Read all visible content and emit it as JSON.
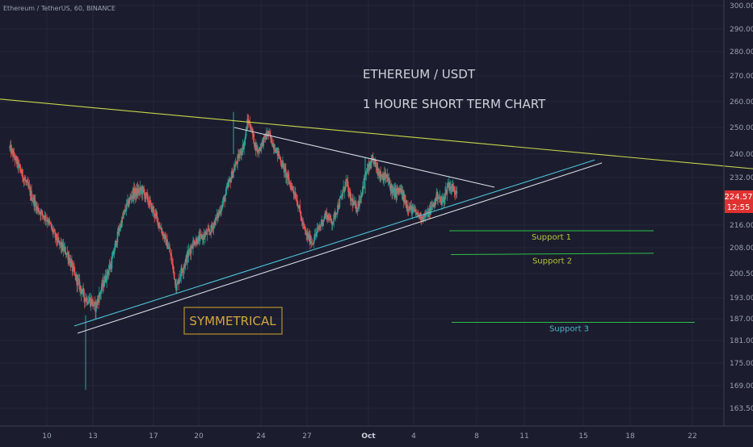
{
  "header": {
    "symbol_info": "Ethereum / TetherUS, 60, BINANCE"
  },
  "colors": {
    "background": "#1b1d2e",
    "candle_up": "#26a69a",
    "candle_down": "#ef5350",
    "resistance_line": "#c8d64a",
    "triangle_upper_line": "#d9dce6",
    "triangle_lower_line": "#4fc3d9",
    "support_line": "#2fbf4a",
    "price_label_bg": "#e03131",
    "annotation_box": "#b8902c",
    "axis_text": "#9aa0b4"
  },
  "chart_data": {
    "type": "candlestick",
    "pair": "ETH/USDT",
    "timeframe": "60",
    "exchange": "BINANCE",
    "title_lines": [
      "ETHEREUM / USDT",
      "1 HOURE SHORT TERM CHART"
    ],
    "y_axis": {
      "tick_labels": [
        "300.00",
        "290.00",
        "280.00",
        "270.00",
        "260.00",
        "250.00",
        "240.00",
        "232.00",
        "224.00",
        "216.00",
        "208.00",
        "200.50",
        "193.00",
        "187.00",
        "181.00",
        "175.00",
        "169.00",
        "163.50"
      ]
    },
    "x_axis": {
      "tick_labels": [
        "10",
        "13",
        "17",
        "20",
        "24",
        "27",
        "Oct",
        "4",
        "8",
        "11",
        "15",
        "18",
        "22"
      ]
    },
    "last_price": "224.57",
    "countdown": "12:55",
    "pattern_label": "SYMMETRICAL",
    "support_levels": [
      {
        "name": "Support 1",
        "price": 214
      },
      {
        "name": "Support 2",
        "price": 206
      },
      {
        "name": "Support 3",
        "price": 186
      }
    ],
    "price_path": [
      [
        7,
        232
      ],
      [
        11,
        222
      ],
      [
        14,
        218
      ],
      [
        17,
        210
      ],
      [
        20,
        206
      ],
      [
        22,
        200
      ],
      [
        25,
        193
      ],
      [
        27,
        192
      ],
      [
        28,
        190
      ],
      [
        30,
        196
      ],
      [
        31,
        199
      ],
      [
        33,
        204
      ],
      [
        35,
        214
      ],
      [
        37,
        222
      ],
      [
        39,
        227
      ],
      [
        42,
        228
      ],
      [
        44,
        224
      ],
      [
        46,
        219
      ],
      [
        48,
        213
      ],
      [
        50,
        207
      ],
      [
        51,
        202
      ],
      [
        52,
        196
      ],
      [
        53,
        200
      ],
      [
        55,
        205
      ],
      [
        57,
        210
      ],
      [
        60,
        212
      ],
      [
        62,
        214
      ],
      [
        64,
        219
      ],
      [
        66,
        225
      ],
      [
        68,
        232
      ],
      [
        70,
        238
      ],
      [
        72,
        244
      ],
      [
        73,
        253
      ],
      [
        74,
        250
      ],
      [
        75,
        244
      ],
      [
        76,
        241
      ],
      [
        78,
        246
      ],
      [
        79,
        248
      ],
      [
        80,
        245
      ],
      [
        82,
        240
      ],
      [
        83,
        237
      ],
      [
        85,
        231
      ],
      [
        87,
        227
      ],
      [
        88,
        223
      ],
      [
        89,
        217
      ],
      [
        90,
        213
      ],
      [
        92,
        210
      ],
      [
        94,
        215
      ],
      [
        96,
        220
      ],
      [
        98,
        217
      ],
      [
        99,
        221
      ],
      [
        101,
        227
      ],
      [
        102,
        231
      ],
      [
        103,
        226
      ],
      [
        105,
        222
      ],
      [
        106,
        225
      ],
      [
        108,
        234
      ],
      [
        110,
        238
      ],
      [
        112,
        233
      ],
      [
        114,
        232
      ],
      [
        116,
        227
      ],
      [
        118,
        228
      ],
      [
        120,
        223
      ],
      [
        122,
        221
      ],
      [
        124,
        219
      ],
      [
        126,
        220
      ],
      [
        128,
        224
      ],
      [
        129,
        227
      ],
      [
        130,
        224
      ],
      [
        131,
        226
      ],
      [
        132,
        230
      ],
      [
        133,
        229
      ],
      [
        134,
        228
      ],
      [
        135,
        229
      ]
    ],
    "extreme_wicks": [
      {
        "x": 73.2,
        "high": 256,
        "low": 240
      },
      {
        "x": 27.6,
        "high": 188,
        "low": 168
      },
      {
        "x": 112.2,
        "high": 239,
        "low": 227
      }
    ],
    "trendlines": [
      {
        "name": "resistance-line",
        "from": [
          0,
          261
        ],
        "to": [
          230,
          235
        ]
      },
      {
        "name": "triangle-upper-line",
        "from": [
          74,
          250
        ],
        "to": [
          150,
          229
        ]
      },
      {
        "name": "triangle-lower-line",
        "from": [
          22,
          185
        ],
        "to": [
          182,
          238
        ]
      },
      {
        "name": "triangle-lower-line-inner",
        "from": [
          22,
          183
        ],
        "to": [
          183,
          237
        ]
      }
    ]
  }
}
